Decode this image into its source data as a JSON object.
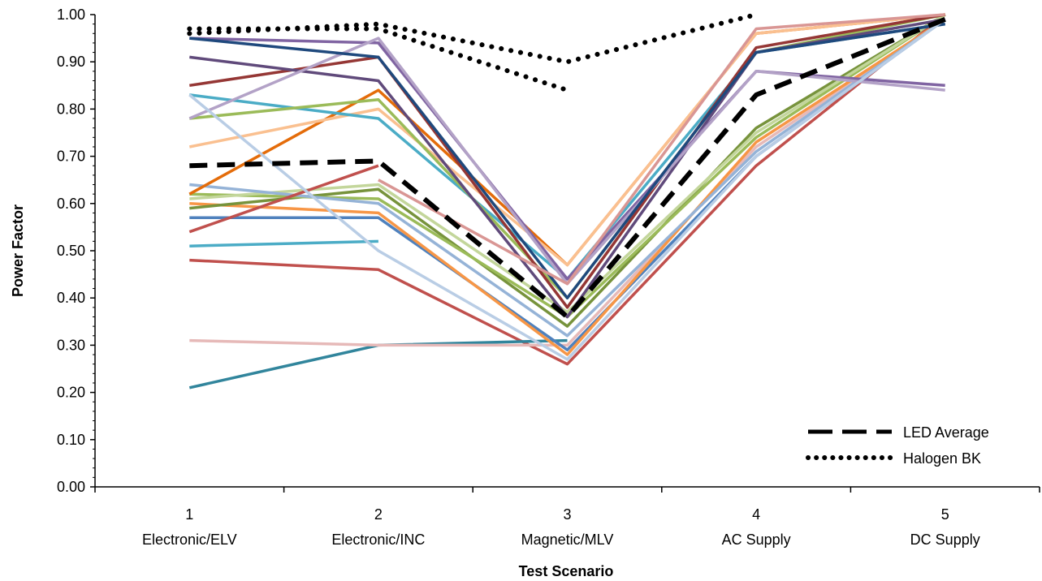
{
  "chart_data": {
    "type": "line",
    "xlabel": "Test Scenario",
    "ylabel": "Power Factor",
    "ylim": [
      0,
      1
    ],
    "y_ticks": [
      "0.00",
      "0.10",
      "0.20",
      "0.30",
      "0.40",
      "0.50",
      "0.60",
      "0.70",
      "0.80",
      "0.90",
      "1.00"
    ],
    "categories": [
      {
        "number": "1",
        "name": "Electronic/ELV"
      },
      {
        "number": "2",
        "name": "Electronic/INC"
      },
      {
        "number": "3",
        "name": "Magnetic/MLV"
      },
      {
        "number": "4",
        "name": "AC Supply"
      },
      {
        "number": "5",
        "name": "DC Supply"
      }
    ],
    "grid": false,
    "legend_position": "bottom-right",
    "series": [
      {
        "color": "#C0504D",
        "values": [
          0.48,
          0.46,
          0.26,
          0.68,
          1.0
        ]
      },
      {
        "color": "#31859C",
        "values": [
          0.21,
          0.3,
          0.31,
          null,
          null
        ]
      },
      {
        "color": "#E6B9B8",
        "values": [
          0.31,
          0.3,
          0.3,
          0.72,
          0.99
        ]
      },
      {
        "color": "#4BACC6",
        "values": [
          0.51,
          0.52,
          null,
          null,
          null
        ]
      },
      {
        "color": "#4F81BD",
        "values": [
          0.57,
          0.57,
          0.29,
          0.7,
          0.99
        ]
      },
      {
        "color": "#F79646",
        "values": [
          0.6,
          0.58,
          0.28,
          0.73,
          0.99
        ]
      },
      {
        "color": "#77933C",
        "values": [
          0.59,
          0.63,
          0.34,
          0.76,
          1.0
        ]
      },
      {
        "color": "#9BBB59",
        "values": [
          0.62,
          0.61,
          0.36,
          0.74,
          1.0
        ]
      },
      {
        "color": "#C3D69B",
        "values": [
          0.61,
          0.64,
          0.37,
          0.75,
          1.0
        ]
      },
      {
        "color": "#95B3D7",
        "values": [
          0.64,
          0.6,
          0.32,
          0.71,
          0.99
        ]
      },
      {
        "color": "#E46C0A",
        "values": [
          0.62,
          0.84,
          0.47,
          0.96,
          1.0
        ]
      },
      {
        "color": "#FAC090",
        "values": [
          0.72,
          0.8,
          0.47,
          0.96,
          1.0
        ]
      },
      {
        "color": "#4BACC6",
        "values": [
          0.83,
          0.78,
          0.44,
          0.92,
          0.98
        ]
      },
      {
        "color": "#9BBB59",
        "values": [
          0.78,
          0.82,
          0.4,
          0.92,
          1.0
        ]
      },
      {
        "color": "#953735",
        "values": [
          0.85,
          0.91,
          0.38,
          0.93,
          1.0
        ]
      },
      {
        "color": "#604A7B",
        "values": [
          0.91,
          0.86,
          0.36,
          0.92,
          0.99
        ]
      },
      {
        "color": "#8064A2",
        "values": [
          0.95,
          0.94,
          0.44,
          0.88,
          0.85
        ]
      },
      {
        "color": "#B3A2C7",
        "values": [
          0.78,
          0.95,
          0.43,
          0.88,
          0.84
        ]
      },
      {
        "color": "#1F497D",
        "values": [
          0.95,
          0.91,
          0.4,
          0.92,
          0.98
        ]
      },
      {
        "color": "#C0504D",
        "values": [
          0.54,
          0.68,
          null,
          null,
          null
        ]
      },
      {
        "color": "#D99694",
        "values": [
          null,
          0.65,
          0.43,
          0.97,
          1.0
        ]
      },
      {
        "color": "#B9CDE5",
        "values": [
          0.83,
          0.5,
          0.27,
          0.7,
          0.99
        ]
      },
      {
        "name": "LED Average",
        "dash": "dashed",
        "color": "#000000",
        "values": [
          0.68,
          0.69,
          0.36,
          0.83,
          0.99
        ]
      },
      {
        "name": "Halogen BK",
        "dash": "dotted",
        "color": "#000000",
        "values": [
          0.97,
          0.97,
          0.84,
          null,
          null
        ]
      },
      {
        "dash": "dotted",
        "color": "#000000",
        "values": [
          0.96,
          0.98,
          0.9,
          1.0,
          null
        ]
      }
    ],
    "legend": [
      {
        "label": "LED Average",
        "dash": "dashed"
      },
      {
        "label": "Halogen BK",
        "dash": "dotted"
      }
    ]
  }
}
